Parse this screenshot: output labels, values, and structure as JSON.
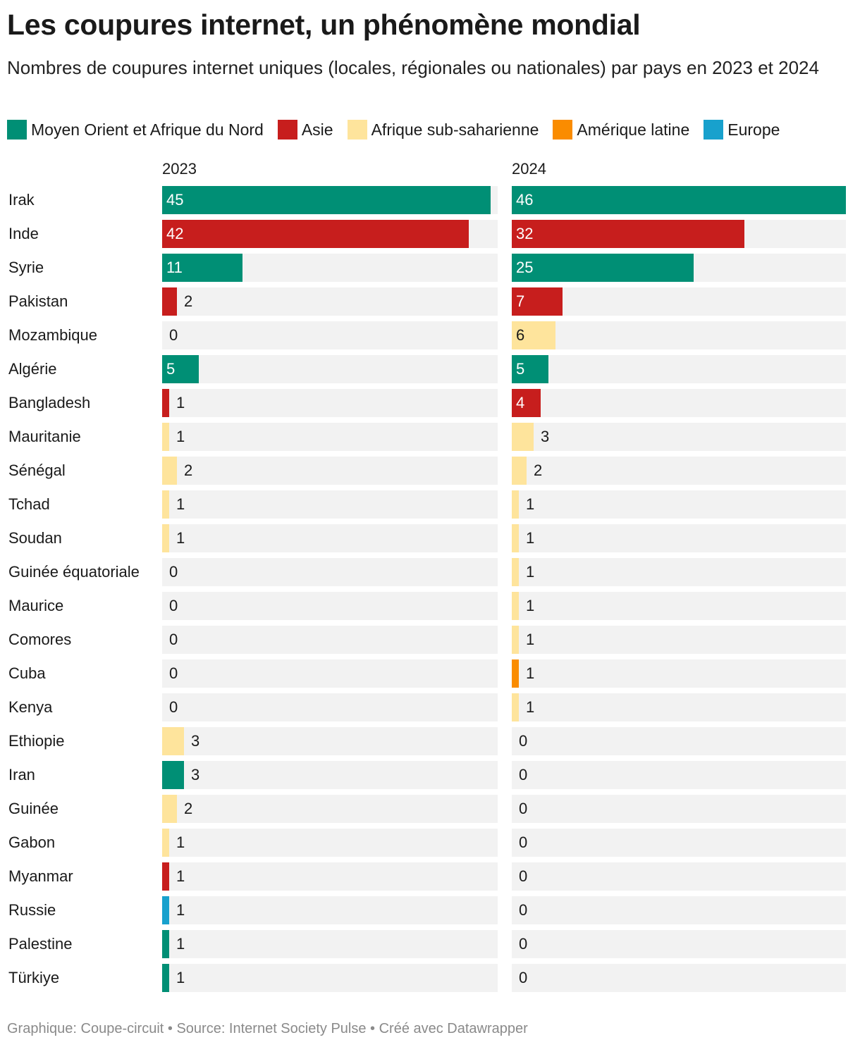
{
  "chart_data": {
    "type": "bar",
    "title": "Les coupures internet, un phénomène mondial",
    "subtitle": "Nombres de coupures internet uniques (locales, régionales ou nationales) par pays en 2023 et 2024",
    "legend": [
      {
        "key": "mena",
        "label": "Moyen Orient et Afrique du Nord",
        "color": "#008f75"
      },
      {
        "key": "asia",
        "label": "Asie",
        "color": "#c71e1d"
      },
      {
        "key": "ssa",
        "label": "Afrique sub-saharienne",
        "color": "#fee49c"
      },
      {
        "key": "latam",
        "label": "Amérique latine",
        "color": "#fa8c00"
      },
      {
        "key": "europe",
        "label": "Europe",
        "color": "#18a1cd"
      }
    ],
    "series": [
      {
        "name": "2023",
        "values": [
          45,
          42,
          11,
          2,
          0,
          5,
          1,
          1,
          2,
          1,
          1,
          0,
          0,
          0,
          0,
          0,
          3,
          3,
          2,
          1,
          1,
          1,
          1,
          1
        ]
      },
      {
        "name": "2024",
        "values": [
          46,
          32,
          25,
          7,
          6,
          5,
          4,
          3,
          2,
          1,
          1,
          1,
          1,
          1,
          1,
          1,
          0,
          0,
          0,
          0,
          0,
          0,
          0,
          0
        ]
      }
    ],
    "categories": [
      "Irak",
      "Inde",
      "Syrie",
      "Pakistan",
      "Mozambique",
      "Algérie",
      "Bangladesh",
      "Mauritanie",
      "Sénégal",
      "Tchad",
      "Soudan",
      "Guinée équatoriale",
      "Maurice",
      "Comores",
      "Cuba",
      "Kenya",
      "Ethiopie",
      "Iran",
      "Guinée",
      "Gabon",
      "Myanmar",
      "Russie",
      "Palestine",
      "Türkiye"
    ],
    "regions": [
      "mena",
      "asia",
      "mena",
      "asia",
      "ssa",
      "mena",
      "asia",
      "ssa",
      "ssa",
      "ssa",
      "ssa",
      "ssa",
      "ssa",
      "ssa",
      "latam",
      "ssa",
      "ssa",
      "mena",
      "ssa",
      "ssa",
      "asia",
      "europe",
      "mena",
      "mena"
    ],
    "xlim": [
      0,
      46
    ]
  },
  "footer": "Graphique: Coupe-circuit • Source: Internet Society Pulse • Créé avec Datawrapper"
}
